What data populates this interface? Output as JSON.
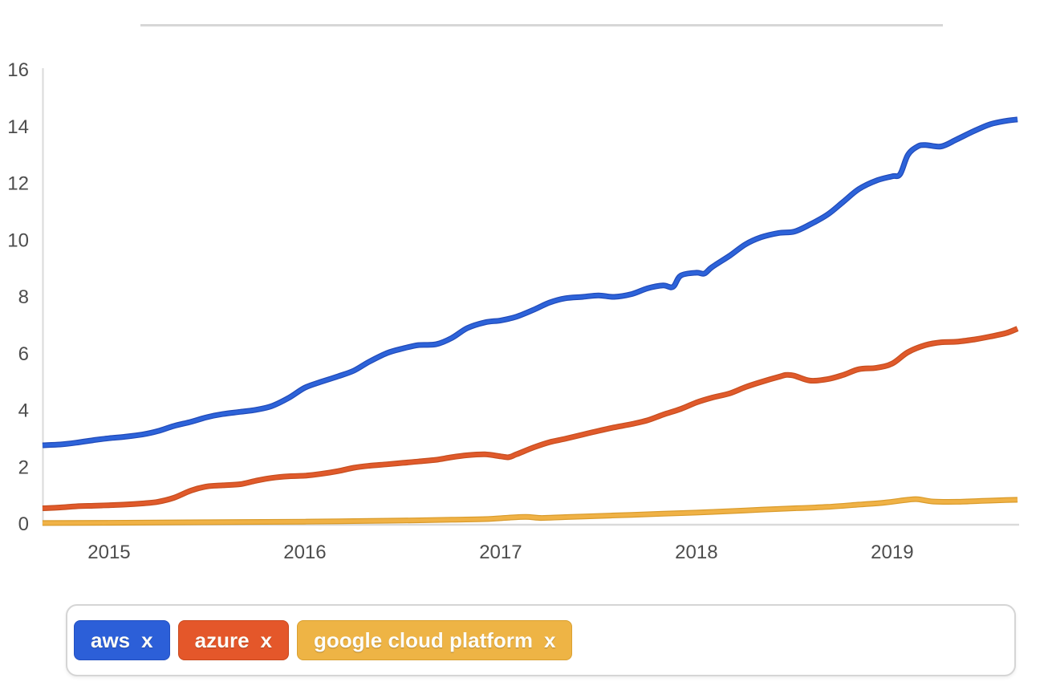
{
  "page": {
    "background_color": "#ffffff",
    "divider_color": "#d7d7d7"
  },
  "chart_data": {
    "type": "line",
    "grid": "off",
    "legend_position": "bottom",
    "axis_color": "#dadada",
    "tick_label_color": "#4d4d4d",
    "x_domain": [
      2014.66,
      2019.64
    ],
    "y_domain": [
      0,
      16
    ],
    "x_ticks": [
      2015,
      2016,
      2017,
      2018,
      2019
    ],
    "y_ticks": [
      0,
      2,
      4,
      6,
      8,
      10,
      12,
      14,
      16
    ],
    "series": [
      {
        "name": "aws",
        "color": "#2d63d9",
        "edge_color": "#2049b8",
        "points": [
          [
            2014.66,
            2.77
          ],
          [
            2014.75,
            2.8
          ],
          [
            2014.83,
            2.86
          ],
          [
            2014.92,
            2.95
          ],
          [
            2015.0,
            3.02
          ],
          [
            2015.08,
            3.07
          ],
          [
            2015.17,
            3.15
          ],
          [
            2015.25,
            3.27
          ],
          [
            2015.33,
            3.45
          ],
          [
            2015.42,
            3.6
          ],
          [
            2015.5,
            3.76
          ],
          [
            2015.58,
            3.87
          ],
          [
            2015.67,
            3.95
          ],
          [
            2015.75,
            4.02
          ],
          [
            2015.83,
            4.15
          ],
          [
            2015.92,
            4.45
          ],
          [
            2016.0,
            4.8
          ],
          [
            2016.08,
            5.0
          ],
          [
            2016.17,
            5.2
          ],
          [
            2016.25,
            5.4
          ],
          [
            2016.33,
            5.72
          ],
          [
            2016.42,
            6.02
          ],
          [
            2016.5,
            6.18
          ],
          [
            2016.58,
            6.3
          ],
          [
            2016.67,
            6.33
          ],
          [
            2016.75,
            6.55
          ],
          [
            2016.83,
            6.9
          ],
          [
            2016.92,
            7.1
          ],
          [
            2017.0,
            7.17
          ],
          [
            2017.08,
            7.3
          ],
          [
            2017.17,
            7.55
          ],
          [
            2017.25,
            7.8
          ],
          [
            2017.33,
            7.95
          ],
          [
            2017.42,
            8.0
          ],
          [
            2017.5,
            8.05
          ],
          [
            2017.58,
            8.0
          ],
          [
            2017.67,
            8.1
          ],
          [
            2017.75,
            8.3
          ],
          [
            2017.83,
            8.4
          ],
          [
            2017.88,
            8.35
          ],
          [
            2017.92,
            8.75
          ],
          [
            2018.0,
            8.85
          ],
          [
            2018.04,
            8.82
          ],
          [
            2018.08,
            9.05
          ],
          [
            2018.17,
            9.45
          ],
          [
            2018.25,
            9.85
          ],
          [
            2018.33,
            10.1
          ],
          [
            2018.42,
            10.25
          ],
          [
            2018.5,
            10.3
          ],
          [
            2018.58,
            10.55
          ],
          [
            2018.67,
            10.9
          ],
          [
            2018.75,
            11.35
          ],
          [
            2018.83,
            11.8
          ],
          [
            2018.92,
            12.1
          ],
          [
            2019.0,
            12.25
          ],
          [
            2019.04,
            12.32
          ],
          [
            2019.08,
            13.0
          ],
          [
            2019.13,
            13.3
          ],
          [
            2019.17,
            13.35
          ],
          [
            2019.25,
            13.3
          ],
          [
            2019.33,
            13.55
          ],
          [
            2019.42,
            13.85
          ],
          [
            2019.5,
            14.08
          ],
          [
            2019.58,
            14.2
          ],
          [
            2019.64,
            14.25
          ]
        ]
      },
      {
        "name": "azure",
        "color": "#e05a2b",
        "edge_color": "#c64e1f",
        "points": [
          [
            2014.66,
            0.55
          ],
          [
            2014.75,
            0.58
          ],
          [
            2014.83,
            0.62
          ],
          [
            2014.92,
            0.64
          ],
          [
            2015.0,
            0.66
          ],
          [
            2015.08,
            0.68
          ],
          [
            2015.17,
            0.72
          ],
          [
            2015.25,
            0.78
          ],
          [
            2015.33,
            0.92
          ],
          [
            2015.42,
            1.18
          ],
          [
            2015.5,
            1.32
          ],
          [
            2015.58,
            1.36
          ],
          [
            2015.67,
            1.4
          ],
          [
            2015.75,
            1.52
          ],
          [
            2015.83,
            1.62
          ],
          [
            2015.92,
            1.68
          ],
          [
            2016.0,
            1.7
          ],
          [
            2016.08,
            1.76
          ],
          [
            2016.17,
            1.86
          ],
          [
            2016.25,
            1.98
          ],
          [
            2016.33,
            2.05
          ],
          [
            2016.42,
            2.1
          ],
          [
            2016.5,
            2.15
          ],
          [
            2016.58,
            2.2
          ],
          [
            2016.67,
            2.26
          ],
          [
            2016.75,
            2.35
          ],
          [
            2016.83,
            2.42
          ],
          [
            2016.92,
            2.45
          ],
          [
            2017.0,
            2.38
          ],
          [
            2017.04,
            2.35
          ],
          [
            2017.08,
            2.45
          ],
          [
            2017.17,
            2.7
          ],
          [
            2017.25,
            2.88
          ],
          [
            2017.33,
            3.0
          ],
          [
            2017.42,
            3.15
          ],
          [
            2017.5,
            3.28
          ],
          [
            2017.58,
            3.4
          ],
          [
            2017.67,
            3.52
          ],
          [
            2017.75,
            3.65
          ],
          [
            2017.83,
            3.85
          ],
          [
            2017.92,
            4.05
          ],
          [
            2018.0,
            4.28
          ],
          [
            2018.08,
            4.45
          ],
          [
            2018.17,
            4.6
          ],
          [
            2018.25,
            4.82
          ],
          [
            2018.33,
            5.0
          ],
          [
            2018.42,
            5.18
          ],
          [
            2018.46,
            5.25
          ],
          [
            2018.5,
            5.22
          ],
          [
            2018.58,
            5.05
          ],
          [
            2018.67,
            5.1
          ],
          [
            2018.75,
            5.25
          ],
          [
            2018.83,
            5.45
          ],
          [
            2018.92,
            5.5
          ],
          [
            2019.0,
            5.65
          ],
          [
            2019.08,
            6.05
          ],
          [
            2019.17,
            6.3
          ],
          [
            2019.25,
            6.4
          ],
          [
            2019.33,
            6.42
          ],
          [
            2019.42,
            6.5
          ],
          [
            2019.5,
            6.6
          ],
          [
            2019.58,
            6.72
          ],
          [
            2019.64,
            6.88
          ]
        ]
      },
      {
        "name": "google cloud platform",
        "color": "#f0b246",
        "edge_color": "#d99b2b",
        "points": [
          [
            2014.66,
            0.03
          ],
          [
            2015.0,
            0.04
          ],
          [
            2015.5,
            0.06
          ],
          [
            2016.0,
            0.08
          ],
          [
            2016.25,
            0.1
          ],
          [
            2016.5,
            0.12
          ],
          [
            2016.75,
            0.15
          ],
          [
            2016.92,
            0.17
          ],
          [
            2017.04,
            0.22
          ],
          [
            2017.13,
            0.25
          ],
          [
            2017.21,
            0.21
          ],
          [
            2017.33,
            0.24
          ],
          [
            2017.5,
            0.28
          ],
          [
            2017.67,
            0.32
          ],
          [
            2017.83,
            0.36
          ],
          [
            2018.0,
            0.4
          ],
          [
            2018.17,
            0.45
          ],
          [
            2018.33,
            0.5
          ],
          [
            2018.5,
            0.55
          ],
          [
            2018.67,
            0.6
          ],
          [
            2018.83,
            0.68
          ],
          [
            2018.96,
            0.75
          ],
          [
            2019.08,
            0.85
          ],
          [
            2019.13,
            0.87
          ],
          [
            2019.21,
            0.79
          ],
          [
            2019.33,
            0.78
          ],
          [
            2019.46,
            0.81
          ],
          [
            2019.58,
            0.84
          ],
          [
            2019.64,
            0.85
          ]
        ]
      }
    ]
  },
  "legend": {
    "items": [
      {
        "label": "aws",
        "remove_label": "x",
        "color": "#2c5fd8",
        "border_color": "#2350c0"
      },
      {
        "label": "azure",
        "remove_label": "x",
        "color": "#e4572a",
        "border_color": "#c84a1f"
      },
      {
        "label": "google cloud platform",
        "remove_label": "x",
        "color": "#eeb445",
        "border_color": "#daa031"
      }
    ]
  }
}
